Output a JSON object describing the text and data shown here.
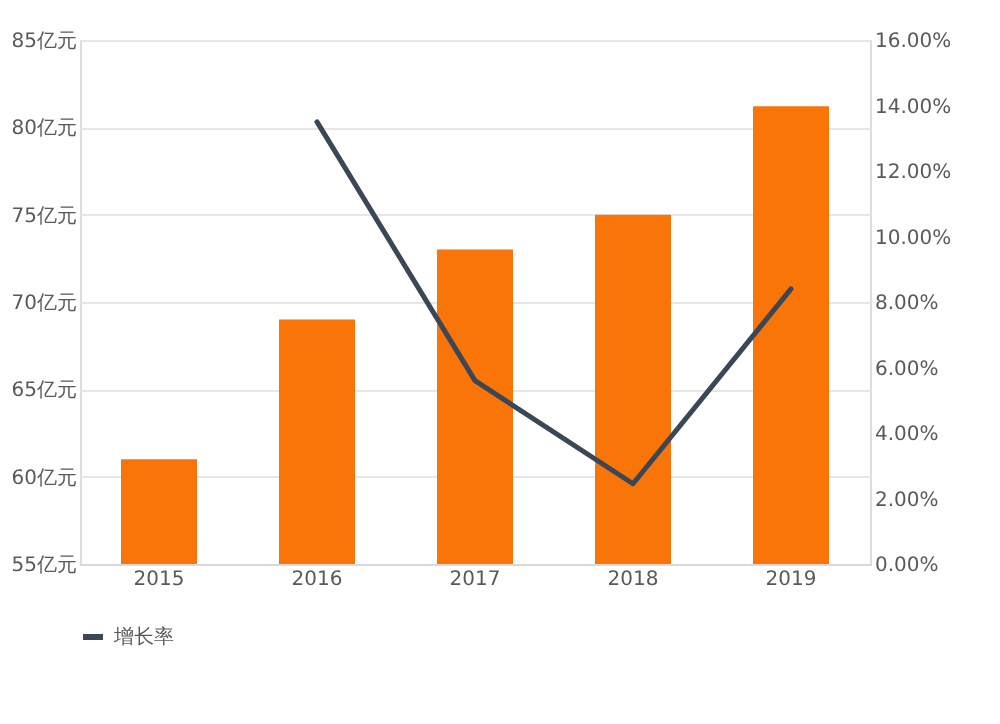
{
  "chart_data": {
    "type": "bar",
    "categories": [
      "2015",
      "2016",
      "2017",
      "2018",
      "2019"
    ],
    "series": [
      {
        "color": "#fa7508",
        "values": [
          61,
          69,
          73,
          75,
          81.2
        ]
      },
      {
        "type": "line",
        "name": "增长率",
        "color": "#3b4656",
        "axis": "y2",
        "values": [
          null,
          13.5,
          5.6,
          2.45,
          8.4
        ]
      }
    ],
    "ylim": [
      55,
      85
    ],
    "yticks": [
      {
        "value": 55,
        "label": "55亿元"
      },
      {
        "value": 60,
        "label": "60亿元"
      },
      {
        "value": 65,
        "label": "65亿元"
      },
      {
        "value": 70,
        "label": "70亿元"
      },
      {
        "value": 75,
        "label": "75亿元"
      },
      {
        "value": 80,
        "label": "80亿元"
      },
      {
        "value": 85,
        "label": "85亿元"
      }
    ],
    "y2lim": [
      0,
      16
    ],
    "y2ticks": [
      {
        "value": 0,
        "label": "0.00%"
      },
      {
        "value": 2,
        "label": "2.00%"
      },
      {
        "value": 4,
        "label": "4.00%"
      },
      {
        "value": 6,
        "label": "6.00%"
      },
      {
        "value": 8,
        "label": "8.00%"
      },
      {
        "value": 10,
        "label": "10.00%"
      },
      {
        "value": 12,
        "label": "12.00%"
      },
      {
        "value": 14,
        "label": "14.00%"
      },
      {
        "value": 16,
        "label": "16.00%"
      }
    ],
    "grid": "y",
    "legend": "bottom",
    "marker": "none",
    "line_style": "solid"
  }
}
